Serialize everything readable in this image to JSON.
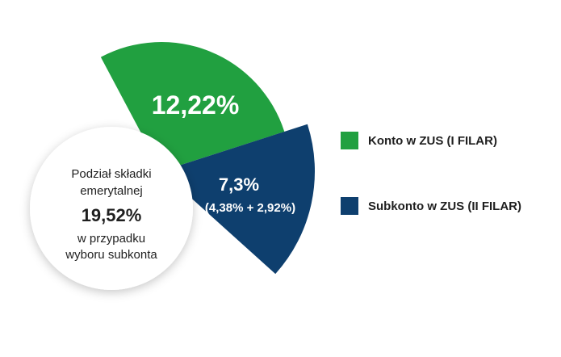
{
  "chart_data": {
    "type": "pie",
    "center_label": {
      "line1": "Podział składki",
      "line2": "emerytalnej",
      "total": "19,52%",
      "line3": "w przypadku",
      "line4": "wyboru subkonta"
    },
    "series": [
      {
        "name": "Konto w ZUS (I FILAR)",
        "value": 12.22,
        "label": "12,22%",
        "sublabel": "",
        "color": "#21a040"
      },
      {
        "name": "Subkonto w ZUS (II FILAR)",
        "value": 7.3,
        "label": "7,3%",
        "sublabel": "(4,38% + 2,92%)",
        "color": "#0e3f6e"
      }
    ],
    "legend_position": "right"
  }
}
